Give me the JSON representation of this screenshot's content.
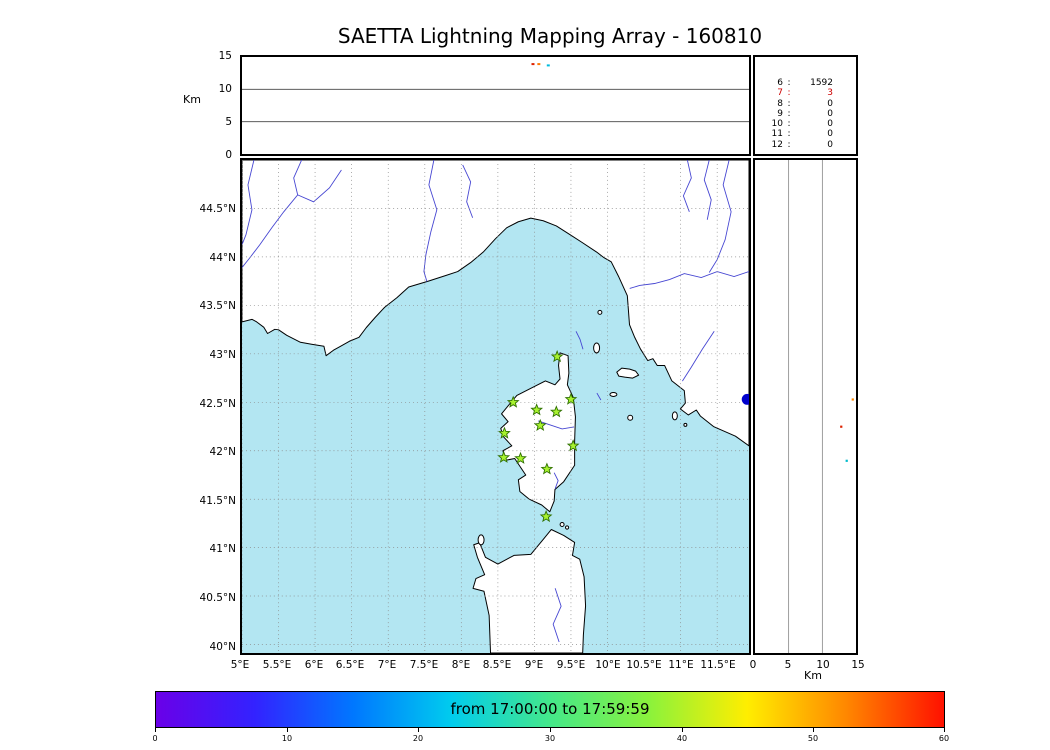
{
  "title": "SAETTA Lightning Mapping Array - 160810",
  "axes": {
    "alt_label": "Km",
    "alt_ticks_top": [
      "15",
      "10",
      "5",
      "0"
    ],
    "lat_ticks": [
      "44.5°N",
      "44°N",
      "43.5°N",
      "43°N",
      "42.5°N",
      "42°N",
      "41.5°N",
      "41°N",
      "40.5°N",
      "40°N"
    ],
    "lon_ticks": [
      "5°E",
      "5.5°E",
      "6°E",
      "6.5°E",
      "7°E",
      "7.5°E",
      "8°E",
      "8.5°E",
      "9°E",
      "9.5°E",
      "10°E",
      "10.5°E",
      "11°E",
      "11.5°E"
    ],
    "right_km_ticks": [
      "0",
      "5",
      "10",
      "15"
    ],
    "right_km_label": "Km"
  },
  "stats": {
    "rows": [
      {
        "n": "6",
        "sep": ":",
        "v": "1592"
      },
      {
        "n": "7",
        "sep": ":",
        "v": "3"
      },
      {
        "n": "8",
        "sep": ":",
        "v": "0"
      },
      {
        "n": "9",
        "sep": ":",
        "v": "0"
      },
      {
        "n": "10",
        "sep": ":",
        "v": "0"
      },
      {
        "n": "11",
        "sep": ":",
        "v": "0"
      },
      {
        "n": "12",
        "sep": ":",
        "v": "0"
      }
    ],
    "highlight_color": "#cc0000"
  },
  "colorbar": {
    "label": "from 17:00:00 to 17:59:59",
    "ticks": [
      "0",
      "10",
      "20",
      "30",
      "40",
      "50",
      "60"
    ],
    "range": [
      0,
      60
    ],
    "gradient": [
      "#6a00e8",
      "#3322ff",
      "#0077ff",
      "#00ccee",
      "#44e88a",
      "#8af23c",
      "#ffee00",
      "#ff8800",
      "#ff1100"
    ]
  },
  "map_colors": {
    "sea": "#b3e6f2",
    "land": "#ffffff",
    "river": "#4646d2",
    "station_star": "#a8f22f",
    "grid": "#8a8a8a"
  },
  "chart_data": [
    {
      "type": "scatter",
      "panel": "altitude-vs-longitude",
      "ylabel": "Km",
      "ylim": [
        0,
        15
      ],
      "yticks": [
        0,
        5,
        10,
        15
      ],
      "xlim": [
        5,
        11.93
      ],
      "grid": "horizontal lines at 5 and 10 km",
      "points": [
        {
          "lon": 8.98,
          "km": 13.9,
          "color": "#dd2200"
        },
        {
          "lon": 9.06,
          "km": 13.9,
          "color": "#ff7700"
        },
        {
          "lon": 9.19,
          "km": 13.7,
          "color": "#00bbdd"
        }
      ]
    },
    {
      "type": "scatter",
      "panel": "plan-view-map",
      "xlim": [
        5,
        11.93
      ],
      "ylim": [
        39.91,
        45.0
      ],
      "lon_tick_values": [
        5,
        5.5,
        6,
        6.5,
        7,
        7.5,
        8,
        8.5,
        9,
        9.5,
        10,
        10.5,
        11,
        11.5
      ],
      "lat_tick_values": [
        44.5,
        44,
        43.5,
        43,
        42.5,
        42,
        41.5,
        41,
        40.5,
        40
      ],
      "stations_lonlat": [
        [
          9.31,
          42.97
        ],
        [
          8.71,
          42.5
        ],
        [
          9.03,
          42.42
        ],
        [
          9.3,
          42.4
        ],
        [
          9.5,
          42.53
        ],
        [
          8.59,
          42.18
        ],
        [
          9.08,
          42.26
        ],
        [
          8.58,
          41.93
        ],
        [
          8.81,
          41.92
        ],
        [
          9.53,
          42.05
        ],
        [
          9.17,
          41.81
        ],
        [
          9.16,
          41.32
        ]
      ],
      "flash_point": {
        "lon": 11.91,
        "lat": 42.53,
        "color": "#0000cc"
      }
    },
    {
      "type": "scatter",
      "panel": "altitude-vs-latitude",
      "xlabel": "Km",
      "xlim": [
        0,
        15
      ],
      "xticks": [
        0,
        5,
        10,
        15
      ],
      "grid": "vertical lines at 5 and 10 km",
      "points": [
        {
          "km": 14.5,
          "lat": 42.54,
          "color": "#ff8800"
        },
        {
          "km": 12.8,
          "lat": 42.26,
          "color": "#dd2200"
        },
        {
          "km": 13.6,
          "lat": 41.91,
          "color": "#00bbcc"
        }
      ]
    }
  ]
}
